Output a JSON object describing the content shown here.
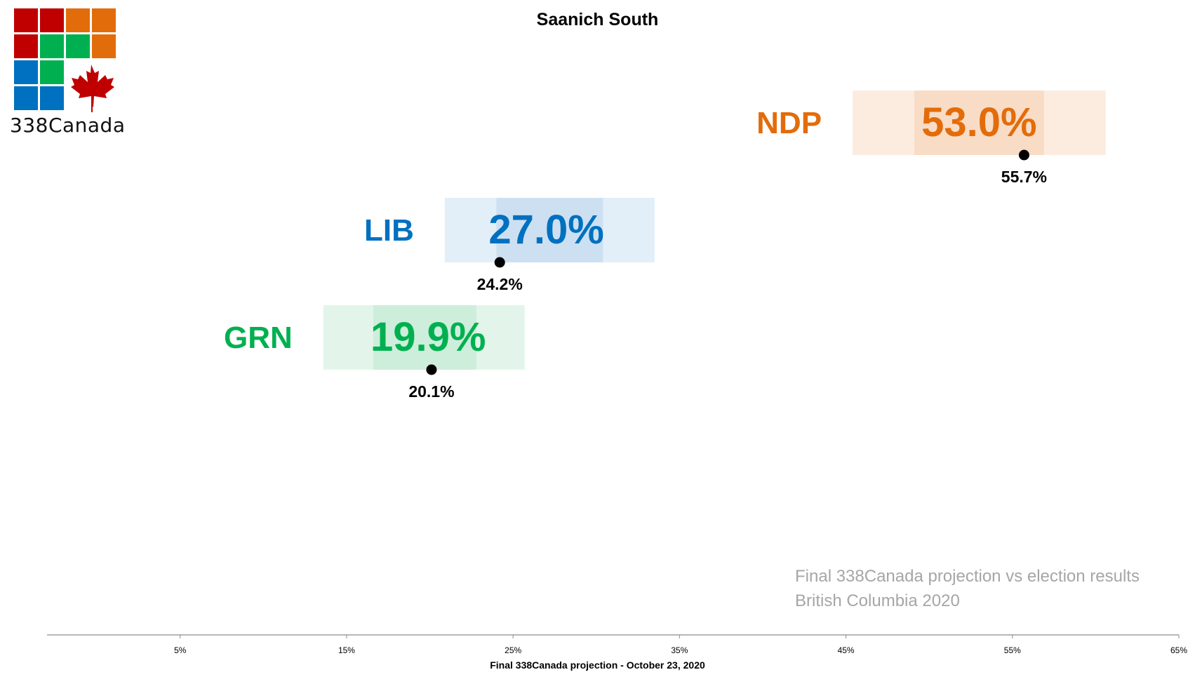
{
  "logo": {
    "text": "338Canada",
    "tile_colors": [
      "#c00000",
      "#c00000",
      "#e36c0a",
      "#e36c0a",
      "#c00000",
      "#00b050",
      "#00b050",
      "#e36c0a",
      "#0070c0",
      "#00b050",
      "#0070c0",
      "#0070c0"
    ],
    "leaf_color": "#c00000"
  },
  "notes": {
    "line1": "Final 338Canada projection vs election results",
    "line2": "British Columbia 2020"
  },
  "chart_data": {
    "type": "bar",
    "title": "Saanich South",
    "xlabel": "Final 338Canada projection - October 23, 2020",
    "ylabel": "",
    "xlim": [
      -3,
      65
    ],
    "x_ticks": [
      5,
      15,
      25,
      35,
      45,
      55,
      65
    ],
    "x_tick_labels": [
      "5%",
      "15%",
      "25%",
      "35%",
      "45%",
      "55%",
      "65%"
    ],
    "series": [
      {
        "name": "NDP",
        "projection": 53.0,
        "projection_label": "53.0%",
        "range_outer": [
          45.4,
          60.6
        ],
        "range_inner": [
          49.1,
          56.9
        ],
        "result": 55.7,
        "result_label": "55.7%",
        "color": "#e36c0a",
        "outer_fill": "#fcece0",
        "inner_fill": "#f9dcc6"
      },
      {
        "name": "LIB",
        "projection": 27.0,
        "projection_label": "27.0%",
        "range_outer": [
          20.9,
          33.5
        ],
        "range_inner": [
          24.0,
          30.4
        ],
        "result": 24.2,
        "result_label": "24.2%",
        "color": "#0070c0",
        "outer_fill": "#e2eef8",
        "inner_fill": "#cce0f2"
      },
      {
        "name": "GRN",
        "projection": 19.9,
        "projection_label": "19.9%",
        "range_outer": [
          13.6,
          25.7
        ],
        "range_inner": [
          16.6,
          22.8
        ],
        "result": 20.1,
        "result_label": "20.1%",
        "color": "#00b050",
        "outer_fill": "#e3f5ea",
        "inner_fill": "#cdeedb"
      }
    ]
  }
}
